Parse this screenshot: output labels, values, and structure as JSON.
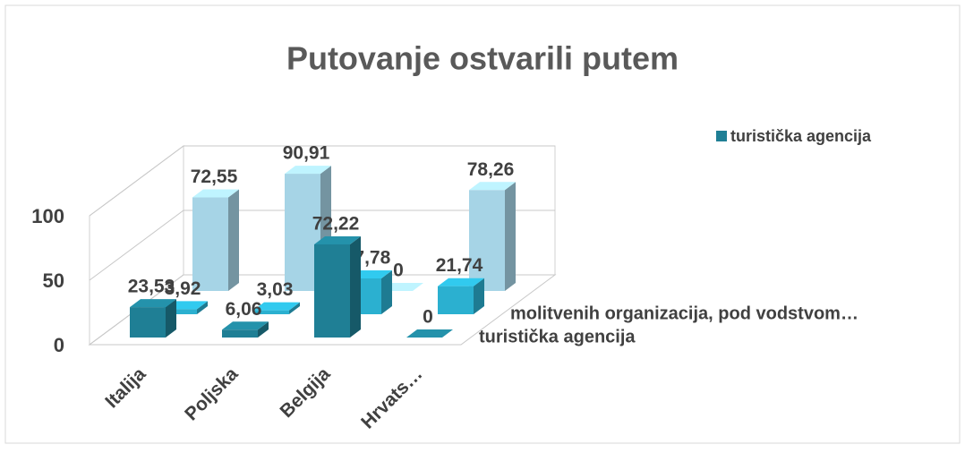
{
  "chart_data": {
    "type": "bar3d",
    "title": "Putovanje ostvarili putem",
    "categories": [
      "Italija",
      "Poljska",
      "Belgija",
      "Hrvats…"
    ],
    "series": [
      {
        "name": "turistička agencija",
        "color": "#1f7f95",
        "values": [
          23.53,
          6.06,
          72.22,
          0
        ],
        "value_labels": [
          "23,53",
          "6,06",
          "72,22",
          "0"
        ]
      },
      {
        "name": "molitvenih organizacija, pod vodstvom…",
        "color": "#2bb0d0",
        "values": [
          3.92,
          3.03,
          27.78,
          21.74
        ],
        "value_labels": [
          "3,92",
          "3,03",
          "27,78",
          "21,74"
        ]
      },
      {
        "name": null,
        "color": "#a6d4e6",
        "values": [
          72.55,
          90.91,
          0,
          78.26
        ],
        "value_labels": [
          "72,55",
          "90,91",
          "0",
          "78,26"
        ]
      }
    ],
    "ylim": [
      0,
      100
    ],
    "yticks": [
      0,
      50,
      100
    ],
    "grid": true,
    "legend": {
      "entries": [
        "turistička agencija"
      ],
      "position": "top-right"
    }
  }
}
